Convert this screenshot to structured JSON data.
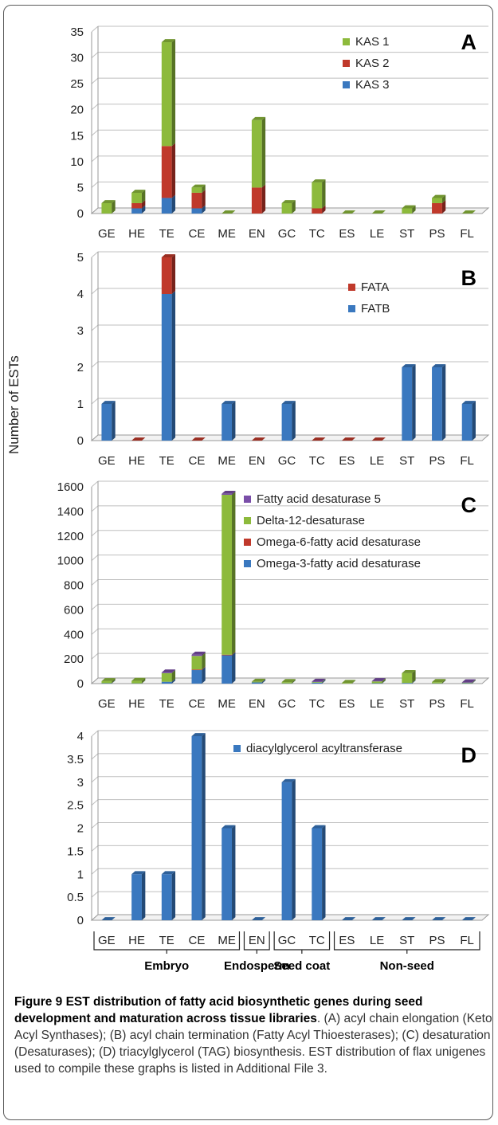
{
  "shared_ylabel": "Number of ESTs",
  "colors": {
    "KAS 1": "#8dba3c",
    "KAS 2": "#c0392b",
    "KAS 3": "#3a78bf",
    "FATA": "#c0392b",
    "FATB": "#3a78bf",
    "Fatty acid desaturase 5": "#7a4ea8",
    "Delta-12-desaturase": "#8dba3c",
    "Omega-6-fatty acid desaturase": "#c0392b",
    "Omega-3-fatty acid desaturase": "#3a78bf",
    "diacylglycerol acyltransferase": "#3a78bf"
  },
  "chart_data": [
    {
      "panel": "A",
      "type": "bar",
      "stacked": true,
      "categories": [
        "GE",
        "HE",
        "TE",
        "CE",
        "ME",
        "EN",
        "GC",
        "TC",
        "ES",
        "LE",
        "ST",
        "PS",
        "FL"
      ],
      "yticks": [
        "0",
        "5",
        "10",
        "15",
        "20",
        "25",
        "30",
        "35"
      ],
      "ylim": [
        0,
        35
      ],
      "legend": [
        "KAS 1",
        "KAS 2",
        "KAS 3"
      ],
      "legend_position": "top-right",
      "series": [
        {
          "name": "KAS 3",
          "values": [
            0,
            1,
            3,
            1,
            0,
            0,
            0,
            0,
            0,
            0,
            0,
            0,
            0
          ]
        },
        {
          "name": "KAS 2",
          "values": [
            0,
            1,
            10,
            3,
            0,
            5,
            0,
            1,
            0,
            0,
            0,
            2,
            0
          ]
        },
        {
          "name": "KAS 1",
          "values": [
            2,
            2,
            20,
            1,
            0,
            13,
            2,
            5,
            0,
            0,
            1,
            1,
            0
          ]
        }
      ]
    },
    {
      "panel": "B",
      "type": "bar",
      "stacked": true,
      "categories": [
        "GE",
        "HE",
        "TE",
        "CE",
        "ME",
        "EN",
        "GC",
        "TC",
        "ES",
        "LE",
        "ST",
        "PS",
        "FL"
      ],
      "yticks": [
        "0",
        "1",
        "2",
        "3",
        "4",
        "5"
      ],
      "ylim": [
        0,
        5
      ],
      "legend": [
        "FATA",
        "FATB"
      ],
      "legend_position": "top-right",
      "series": [
        {
          "name": "FATB",
          "values": [
            1,
            0,
            4,
            0,
            1,
            0,
            1,
            0,
            0,
            0,
            2,
            2,
            1
          ]
        },
        {
          "name": "FATA",
          "values": [
            0,
            0,
            1,
            0,
            0,
            0,
            0,
            0,
            0,
            0,
            0,
            0,
            0
          ]
        }
      ]
    },
    {
      "panel": "C",
      "type": "bar",
      "stacked": true,
      "categories": [
        "GE",
        "HE",
        "TE",
        "CE",
        "ME",
        "EN",
        "GC",
        "TC",
        "ES",
        "LE",
        "ST",
        "PS",
        "FL"
      ],
      "yticks": [
        "0",
        "200",
        "400",
        "600",
        "800",
        "1000",
        "1200",
        "1400",
        "1600"
      ],
      "ylim": [
        0,
        1600
      ],
      "legend": [
        "Fatty acid desaturase 5",
        "Delta-12-desaturase",
        "Omega-6-fatty acid desaturase",
        "Omega-3-fatty acid desaturase"
      ],
      "legend_position": "top-right",
      "series": [
        {
          "name": "Omega-3-fatty acid desaturase",
          "values": [
            3,
            2,
            15,
            110,
            230,
            10,
            2,
            8,
            0,
            3,
            5,
            2,
            3
          ]
        },
        {
          "name": "Omega-6-fatty acid desaturase",
          "values": [
            0,
            0,
            0,
            5,
            5,
            0,
            0,
            0,
            0,
            0,
            0,
            0,
            0
          ]
        },
        {
          "name": "Delta-12-desaturase",
          "values": [
            17,
            20,
            70,
            110,
            1300,
            5,
            10,
            5,
            5,
            15,
            80,
            10,
            5
          ]
        },
        {
          "name": "Fatty acid desaturase 5",
          "values": [
            0,
            0,
            5,
            10,
            8,
            0,
            0,
            2,
            0,
            2,
            0,
            0,
            2
          ]
        }
      ]
    },
    {
      "panel": "D",
      "type": "bar",
      "categories": [
        "GE",
        "HE",
        "TE",
        "CE",
        "ME",
        "EN",
        "GC",
        "TC",
        "ES",
        "LE",
        "ST",
        "PS",
        "FL"
      ],
      "yticks": [
        "0",
        "0.5",
        "1",
        "1.5",
        "2",
        "2.5",
        "3",
        "3.5",
        "4"
      ],
      "ylim": [
        0,
        4
      ],
      "legend": [
        "diacylglycerol acyltransferase"
      ],
      "legend_position": "top-right",
      "series": [
        {
          "name": "diacylglycerol acyltransferase",
          "values": [
            0,
            1,
            1,
            4,
            2,
            0,
            3,
            2,
            0,
            0,
            0,
            0,
            0
          ]
        }
      ],
      "groups": [
        {
          "label": "Embryo",
          "from": 0,
          "to": 4
        },
        {
          "label": "Endosperm",
          "from": 5,
          "to": 5
        },
        {
          "label": "Seed coat",
          "from": 6,
          "to": 7
        },
        {
          "label": "Non-seed",
          "from": 8,
          "to": 12
        }
      ]
    }
  ],
  "caption": {
    "bold": "Figure 9 EST distribution of fatty acid biosynthetic genes during seed development and maturation across tissue libraries",
    "text": ". (A) acyl chain elongation (Keto Acyl Synthases); (B) acyl chain termination (Fatty Acyl Thioesterases); (C) desaturation (Desaturases); (D) triacylglycerol (TAG) biosynthesis. EST distribution of flax unigenes used to compile these graphs is listed in Additional File 3."
  }
}
